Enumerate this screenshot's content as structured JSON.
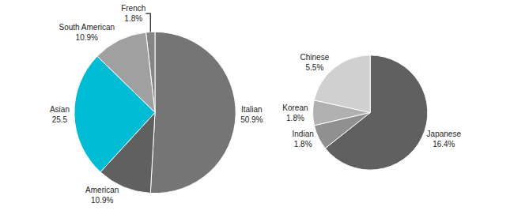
{
  "chart_data": [
    {
      "type": "pie",
      "categories": [
        "Italian",
        "French",
        "South American",
        "Asian",
        "American"
      ],
      "values": [
        50.9,
        1.8,
        10.9,
        25.5,
        10.9
      ],
      "value_labels": [
        "50.9%",
        "1.8%",
        "10.9%",
        "25.5",
        "10.9%"
      ],
      "colors": [
        "#757575",
        "#858585",
        "#a0a0a0",
        "#00bcd4",
        "#606060"
      ],
      "data_labels": true
    },
    {
      "type": "pie",
      "categories": [
        "Japanese",
        "Chinese",
        "Korean",
        "Indian"
      ],
      "values": [
        16.4,
        5.5,
        1.8,
        1.8
      ],
      "value_labels": [
        "16.4%",
        "5.5%",
        "1.8%",
        "1.8%"
      ],
      "colors": [
        "#606060",
        "#d0d0d0",
        "#b0b0b0",
        "#909090"
      ],
      "data_labels": true
    }
  ]
}
